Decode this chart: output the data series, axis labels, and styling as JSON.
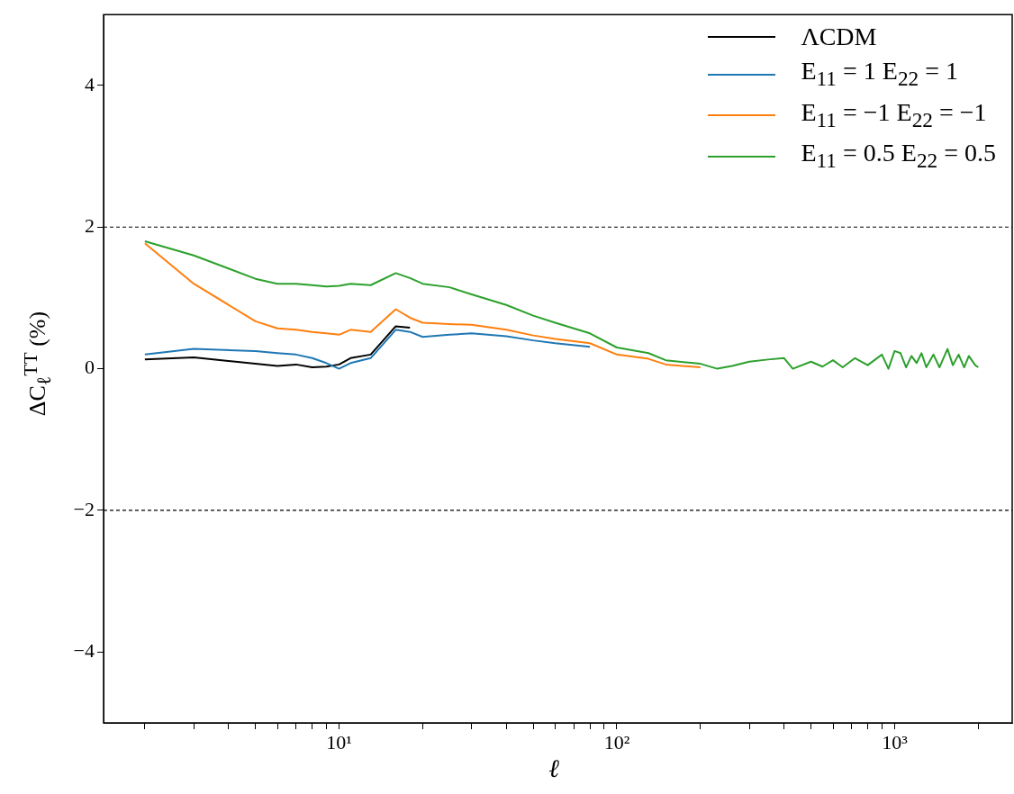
{
  "chart_data": {
    "type": "line",
    "xlabel": "ℓ",
    "ylabel": "ΔC$_{ℓ}$$^{TT}$ (%)",
    "log": "x",
    "x": [
      2,
      3,
      5,
      6,
      7,
      8,
      9,
      10,
      11,
      13,
      16,
      18,
      20,
      25,
      30,
      40,
      50,
      60,
      80,
      100,
      130,
      150,
      200,
      230,
      260,
      300,
      350,
      400,
      430,
      500,
      550,
      600,
      650,
      720,
      800,
      900,
      950,
      1000,
      1050,
      1100,
      1150,
      1200,
      1250,
      1300,
      1380,
      1450,
      1550,
      1620,
      1700,
      1780,
      1850,
      1950,
      2000
    ],
    "series": [
      {
        "name": "ΛCDM",
        "color": "#000000",
        "values": [
          0.13,
          0.16,
          0.07,
          0.04,
          0.06,
          0.02,
          0.03,
          0.06,
          0.15,
          0.2,
          0.6,
          0.58,
          null,
          null,
          null,
          null,
          null,
          null,
          null,
          null,
          null,
          null,
          null,
          null,
          null,
          null,
          null,
          null,
          null,
          null,
          null,
          null,
          null,
          null,
          null,
          null,
          null,
          null,
          null,
          null,
          null,
          null,
          null,
          null,
          null,
          null,
          null,
          null,
          null,
          null,
          null,
          null,
          null
        ]
      },
      {
        "name": "E$_{11}$ = 1 E$_{22}$ = 1",
        "color": "#1f77b4",
        "values": [
          0.2,
          0.28,
          0.25,
          0.22,
          0.2,
          0.15,
          0.08,
          0.0,
          0.08,
          0.15,
          0.55,
          0.52,
          0.45,
          0.48,
          0.5,
          0.46,
          0.4,
          0.36,
          0.31,
          null,
          null,
          null,
          null,
          null,
          null,
          null,
          null,
          null,
          null,
          null,
          null,
          null,
          null,
          null,
          null,
          null,
          null,
          null,
          null,
          null,
          null,
          null,
          null,
          null,
          null,
          null,
          null,
          null,
          null,
          null,
          null,
          null,
          null
        ]
      },
      {
        "name": "E$_{11}$ = −1 E$_{22}$ = −1",
        "color": "#ff7f0e",
        "values": [
          1.77,
          1.2,
          0.67,
          0.57,
          0.55,
          0.52,
          0.5,
          0.48,
          0.55,
          0.52,
          0.84,
          0.72,
          0.65,
          0.63,
          0.62,
          0.55,
          0.47,
          0.42,
          0.36,
          0.2,
          0.14,
          0.06,
          0.02,
          null,
          null,
          null,
          null,
          null,
          null,
          null,
          null,
          null,
          null,
          null,
          null,
          null,
          null,
          null,
          null,
          null,
          null,
          null,
          null,
          null,
          null,
          null,
          null,
          null,
          null,
          null,
          null,
          null,
          null
        ]
      },
      {
        "name": "E$_{11}$ = 0.5 E$_{22}$ = 0.5",
        "color": "#2ca02c",
        "values": [
          1.8,
          1.6,
          1.27,
          1.2,
          1.2,
          1.18,
          1.16,
          1.17,
          1.2,
          1.18,
          1.35,
          1.28,
          1.2,
          1.15,
          1.05,
          0.9,
          0.75,
          0.65,
          0.5,
          0.3,
          0.22,
          0.12,
          0.07,
          0.0,
          0.04,
          0.1,
          0.13,
          0.15,
          0.0,
          0.1,
          0.03,
          0.12,
          0.02,
          0.15,
          0.05,
          0.2,
          0.0,
          0.25,
          0.22,
          0.02,
          0.18,
          0.08,
          0.22,
          0.02,
          0.2,
          0.02,
          0.28,
          0.05,
          0.2,
          0.02,
          0.18,
          0.05,
          0.02
        ]
      }
    ],
    "xlim": [
      1.42,
      2650
    ],
    "xticks": [
      {
        "value": 2,
        "label": null
      },
      {
        "value": 3,
        "label": null
      },
      {
        "value": 4,
        "label": null
      },
      {
        "value": 5,
        "label": null
      },
      {
        "value": 6,
        "label": null
      },
      {
        "value": 7,
        "label": null
      },
      {
        "value": 8,
        "label": null
      },
      {
        "value": 9,
        "label": null
      },
      {
        "value": 10,
        "label": "10¹"
      },
      {
        "value": 20,
        "label": null
      },
      {
        "value": 30,
        "label": null
      },
      {
        "value": 40,
        "label": null
      },
      {
        "value": 50,
        "label": null
      },
      {
        "value": 60,
        "label": null
      },
      {
        "value": 70,
        "label": null
      },
      {
        "value": 80,
        "label": null
      },
      {
        "value": 90,
        "label": null
      },
      {
        "value": 100,
        "label": "10²"
      },
      {
        "value": 200,
        "label": null
      },
      {
        "value": 300,
        "label": null
      },
      {
        "value": 400,
        "label": null
      },
      {
        "value": 500,
        "label": null
      },
      {
        "value": 600,
        "label": null
      },
      {
        "value": 700,
        "label": null
      },
      {
        "value": 800,
        "label": null
      },
      {
        "value": 900,
        "label": null
      },
      {
        "value": 1000,
        "label": "10³"
      },
      {
        "value": 2000,
        "label": null
      }
    ],
    "ylim": [
      -5,
      5
    ],
    "yticks": [
      {
        "value": -4,
        "label": "−4"
      },
      {
        "value": -2,
        "label": "−2"
      },
      0,
      2,
      4
    ],
    "ref_lines": [
      {
        "axis": "y",
        "value": 2,
        "color": "#000000",
        "line_style": "dashed"
      },
      {
        "axis": "y",
        "value": -2,
        "color": "#000000",
        "line_style": "dashed"
      }
    ],
    "grid": false,
    "legend": "top right",
    "line_style": "solid",
    "marker": "none"
  }
}
